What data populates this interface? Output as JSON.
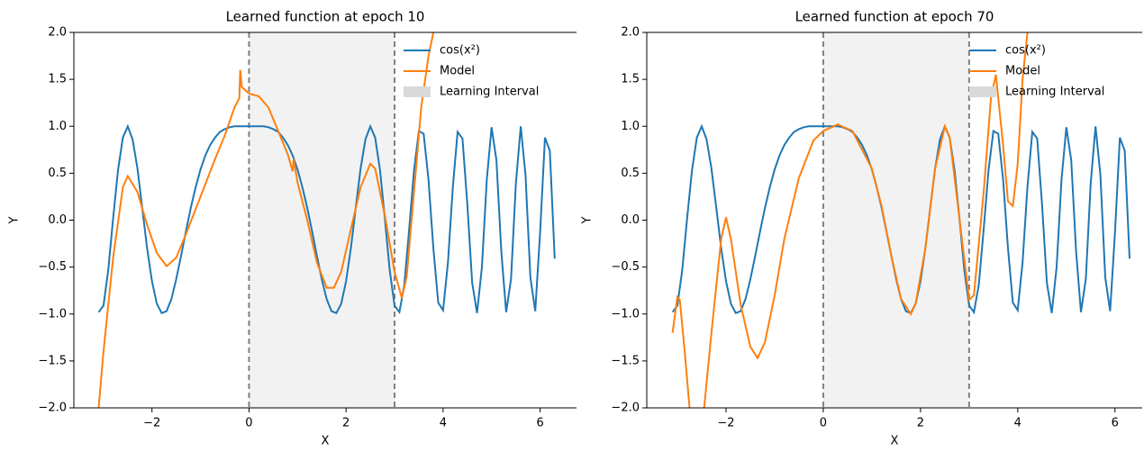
{
  "chart_data": [
    {
      "type": "line",
      "title": "Learned function at epoch 10",
      "xlabel": "X",
      "ylabel": "Y",
      "xlim": [
        -3.61,
        6.75
      ],
      "ylim": [
        -2,
        2
      ],
      "xticks": [
        {
          "value": -2,
          "label": "−2"
        },
        0,
        2,
        4,
        6
      ],
      "yticks": [
        {
          "value": -2,
          "label": "−2.0"
        },
        {
          "value": -1.5,
          "label": "−1.5"
        },
        {
          "value": -1,
          "label": "−1.0"
        },
        {
          "value": -0.5,
          "label": "−0.5"
        },
        {
          "value": 0,
          "label": "0.0"
        },
        {
          "value": 0.5,
          "label": "0.5"
        },
        {
          "value": 1,
          "label": "1.0"
        },
        {
          "value": 1.5,
          "label": "1.5"
        },
        {
          "value": 2,
          "label": "2.0"
        }
      ],
      "interval": [
        0,
        3
      ],
      "interval_label": "Learning Interval",
      "interval_color": "#f2f2f2",
      "legend": "upper right",
      "series": [
        {
          "name": "cos(x²)",
          "color": "#1f77b4",
          "x": [
            -3.1,
            -3.0,
            -2.9,
            -2.8,
            -2.7,
            -2.6,
            -2.5,
            -2.4,
            -2.3,
            -2.2,
            -2.1,
            -2.0,
            -1.9,
            -1.8,
            -1.7,
            -1.6,
            -1.5,
            -1.4,
            -1.3,
            -1.2,
            -1.1,
            -1.0,
            -0.9,
            -0.8,
            -0.7,
            -0.6,
            -0.5,
            -0.4,
            -0.3,
            -0.2,
            -0.1,
            0,
            0.1,
            0.2,
            0.3,
            0.4,
            0.5,
            0.6,
            0.7,
            0.8,
            0.9,
            1.0,
            1.1,
            1.2,
            1.3,
            1.4,
            1.5,
            1.6,
            1.7,
            1.8,
            1.9,
            2.0,
            2.1,
            2.2,
            2.3,
            2.4,
            2.5,
            2.6,
            2.7,
            2.8,
            2.9,
            3.0,
            3.1,
            3.2,
            3.3,
            3.4,
            3.5,
            3.6,
            3.7,
            3.8,
            3.9,
            4.0,
            4.1,
            4.2,
            4.3,
            4.4,
            4.5,
            4.6,
            4.7,
            4.8,
            4.9,
            5.0,
            5.1,
            5.2,
            5.3,
            5.4,
            5.5,
            5.6,
            5.7,
            5.8,
            5.9,
            6.0,
            6.1,
            6.2,
            6.3
          ],
          "values": [
            -0.98,
            -0.91,
            -0.53,
            0.02,
            0.53,
            0.88,
            1.0,
            0.86,
            0.55,
            0.13,
            -0.3,
            -0.65,
            -0.89,
            -0.99,
            -0.97,
            -0.84,
            -0.63,
            -0.38,
            -0.12,
            0.13,
            0.35,
            0.54,
            0.69,
            0.8,
            0.88,
            0.94,
            0.97,
            0.99,
            1.0,
            1.0,
            1.0,
            1.0,
            1.0,
            1.0,
            1.0,
            0.99,
            0.97,
            0.94,
            0.88,
            0.8,
            0.69,
            0.54,
            0.35,
            0.13,
            -0.12,
            -0.38,
            -0.63,
            -0.84,
            -0.97,
            -0.99,
            -0.89,
            -0.65,
            -0.3,
            0.13,
            0.55,
            0.86,
            1.0,
            0.88,
            0.53,
            0.02,
            -0.53,
            -0.91,
            -0.98,
            -0.69,
            -0.1,
            0.53,
            0.95,
            0.92,
            0.43,
            -0.3,
            -0.88,
            -0.96,
            -0.45,
            0.35,
            0.94,
            0.87,
            0.17,
            -0.67,
            -0.99,
            -0.5,
            0.43,
            0.99,
            0.64,
            -0.33,
            -0.98,
            -0.63,
            0.39,
            1.0,
            0.48,
            -0.61,
            -0.97,
            -0.13,
            0.88,
            0.74,
            -0.41
          ]
        },
        {
          "name": "Model",
          "color": "#ff7f0e",
          "x": [
            -3.1,
            -3.0,
            -2.8,
            -2.6,
            -2.5,
            -2.3,
            -2.1,
            -1.9,
            -1.7,
            -1.5,
            -1.3,
            -1.0,
            -0.7,
            -0.5,
            -0.3,
            -0.2,
            -0.18,
            -0.15,
            0,
            0.2,
            0.4,
            0.6,
            0.8,
            0.9,
            0.92,
            1.0,
            1.2,
            1.4,
            1.6,
            1.75,
            1.9,
            2.1,
            2.3,
            2.5,
            2.6,
            2.8,
            3.0,
            3.15,
            3.25,
            3.4,
            3.55,
            3.7,
            3.8
          ],
          "values": [
            -2.0,
            -1.4,
            -0.4,
            0.35,
            0.47,
            0.3,
            -0.05,
            -0.35,
            -0.49,
            -0.4,
            -0.15,
            0.25,
            0.65,
            0.9,
            1.2,
            1.3,
            1.6,
            1.42,
            1.35,
            1.32,
            1.2,
            0.95,
            0.7,
            0.52,
            0.65,
            0.4,
            0.0,
            -0.45,
            -0.72,
            -0.72,
            -0.55,
            -0.1,
            0.35,
            0.6,
            0.55,
            0.05,
            -0.55,
            -0.83,
            -0.6,
            0.3,
            1.2,
            1.75,
            2.0
          ]
        }
      ]
    },
    {
      "type": "line",
      "title": "Learned function at epoch 70",
      "xlabel": "X",
      "ylabel": "Y",
      "xlim": [
        -3.63,
        6.56
      ],
      "ylim": [
        -2,
        2
      ],
      "xticks": [
        {
          "value": -2,
          "label": "−2"
        },
        0,
        2,
        4,
        6
      ],
      "yticks": [
        {
          "value": -2,
          "label": "−2.0"
        },
        {
          "value": -1.5,
          "label": "−1.5"
        },
        {
          "value": -1,
          "label": "−1.0"
        },
        {
          "value": -0.5,
          "label": "−0.5"
        },
        {
          "value": 0,
          "label": "0.0"
        },
        {
          "value": 0.5,
          "label": "0.5"
        },
        {
          "value": 1,
          "label": "1.0"
        },
        {
          "value": 1.5,
          "label": "1.5"
        },
        {
          "value": 2,
          "label": "2.0"
        }
      ],
      "interval": [
        0,
        3
      ],
      "interval_label": "Learning Interval",
      "interval_color": "#f2f2f2",
      "legend": "upper right",
      "series": [
        {
          "name": "cos(x²)",
          "color": "#1f77b4",
          "x": [
            -3.1,
            -3.0,
            -2.9,
            -2.8,
            -2.7,
            -2.6,
            -2.5,
            -2.4,
            -2.3,
            -2.2,
            -2.1,
            -2.0,
            -1.9,
            -1.8,
            -1.7,
            -1.6,
            -1.5,
            -1.4,
            -1.3,
            -1.2,
            -1.1,
            -1.0,
            -0.9,
            -0.8,
            -0.7,
            -0.6,
            -0.5,
            -0.4,
            -0.3,
            -0.2,
            -0.1,
            0,
            0.1,
            0.2,
            0.3,
            0.4,
            0.5,
            0.6,
            0.7,
            0.8,
            0.9,
            1.0,
            1.1,
            1.2,
            1.3,
            1.4,
            1.5,
            1.6,
            1.7,
            1.8,
            1.9,
            2.0,
            2.1,
            2.2,
            2.3,
            2.4,
            2.5,
            2.6,
            2.7,
            2.8,
            2.9,
            3.0,
            3.1,
            3.2,
            3.3,
            3.4,
            3.5,
            3.6,
            3.7,
            3.8,
            3.9,
            4.0,
            4.1,
            4.2,
            4.3,
            4.4,
            4.5,
            4.6,
            4.7,
            4.8,
            4.9,
            5.0,
            5.1,
            5.2,
            5.3,
            5.4,
            5.5,
            5.6,
            5.7,
            5.8,
            5.9,
            6.0,
            6.1,
            6.2,
            6.3
          ],
          "values": [
            -0.98,
            -0.91,
            -0.53,
            0.02,
            0.53,
            0.88,
            1.0,
            0.86,
            0.55,
            0.13,
            -0.3,
            -0.65,
            -0.89,
            -0.99,
            -0.97,
            -0.84,
            -0.63,
            -0.38,
            -0.12,
            0.13,
            0.35,
            0.54,
            0.69,
            0.8,
            0.88,
            0.94,
            0.97,
            0.99,
            1.0,
            1.0,
            1.0,
            1.0,
            1.0,
            1.0,
            1.0,
            0.99,
            0.97,
            0.94,
            0.88,
            0.8,
            0.69,
            0.54,
            0.35,
            0.13,
            -0.12,
            -0.38,
            -0.63,
            -0.84,
            -0.97,
            -0.99,
            -0.89,
            -0.65,
            -0.3,
            0.13,
            0.55,
            0.86,
            1.0,
            0.88,
            0.53,
            0.02,
            -0.53,
            -0.91,
            -0.98,
            -0.69,
            -0.1,
            0.53,
            0.95,
            0.92,
            0.43,
            -0.3,
            -0.88,
            -0.96,
            -0.45,
            0.35,
            0.94,
            0.87,
            0.17,
            -0.67,
            -0.99,
            -0.5,
            0.43,
            0.99,
            0.64,
            -0.33,
            -0.98,
            -0.63,
            0.39,
            1.0,
            0.48,
            -0.61,
            -0.97,
            -0.13,
            0.88,
            0.74,
            -0.41
          ]
        },
        {
          "name": "Model",
          "color": "#ff7f0e",
          "x": [
            -3.1,
            -3.0,
            -2.95,
            -2.85,
            -2.75,
            -2.6,
            -2.45,
            -2.3,
            -2.1,
            -2.0,
            -1.9,
            -1.7,
            -1.5,
            -1.35,
            -1.2,
            -1.0,
            -0.8,
            -0.5,
            -0.2,
            0,
            0.3,
            0.6,
            1.0,
            1.2,
            1.4,
            1.6,
            1.8,
            1.9,
            2.1,
            2.3,
            2.5,
            2.6,
            2.8,
            3.0,
            3.1,
            3.3,
            3.45,
            3.55,
            3.7,
            3.8,
            3.9,
            4.0,
            4.1,
            4.2
          ],
          "values": [
            -1.2,
            -0.82,
            -0.85,
            -1.4,
            -2.0,
            null,
            -2.0,
            -1.2,
            -0.2,
            0.03,
            -0.2,
            -0.9,
            -1.35,
            -1.47,
            -1.3,
            -0.8,
            -0.2,
            0.45,
            0.85,
            0.95,
            1.02,
            0.95,
            0.55,
            0.15,
            -0.38,
            -0.84,
            -1.0,
            -0.89,
            -0.3,
            0.55,
            1.0,
            0.88,
            0.02,
            -0.85,
            -0.8,
            0.3,
            1.3,
            1.55,
            0.8,
            0.2,
            0.15,
            0.6,
            1.5,
            2.0
          ]
        }
      ]
    }
  ]
}
